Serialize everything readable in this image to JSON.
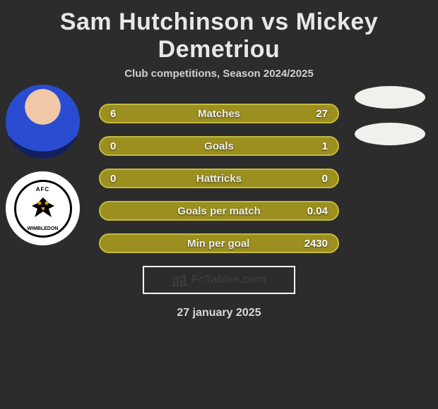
{
  "title": "Sam Hutchinson vs Mickey Demetriou",
  "subtitle": "Club competitions, Season 2024/2025",
  "avatars": {
    "player1_shirt_color": "#2a4cd0",
    "player2_badge_top": "AFC",
    "player2_badge_bottom": "WIMBLEDON"
  },
  "bars": [
    {
      "left": "6",
      "label": "Matches",
      "right": "27",
      "fill": "#9a8f1f",
      "border": "#c5ba40"
    },
    {
      "left": "0",
      "label": "Goals",
      "right": "1",
      "fill": "#9a8f1f",
      "border": "#c5ba40"
    },
    {
      "left": "0",
      "label": "Hattricks",
      "right": "0",
      "fill": "#9a8f1f",
      "border": "#c5ba40"
    },
    {
      "left": "",
      "label": "Goals per match",
      "right": "0.04",
      "fill": "#9a8f1f",
      "border": "#c5ba40"
    },
    {
      "left": "",
      "label": "Min per goal",
      "right": "2430",
      "fill": "#9a8f1f",
      "border": "#c5ba40"
    }
  ],
  "footer": {
    "brand": "FcTables.com"
  },
  "date": "27 january 2025",
  "ellipse_color": "#f0f0ec"
}
